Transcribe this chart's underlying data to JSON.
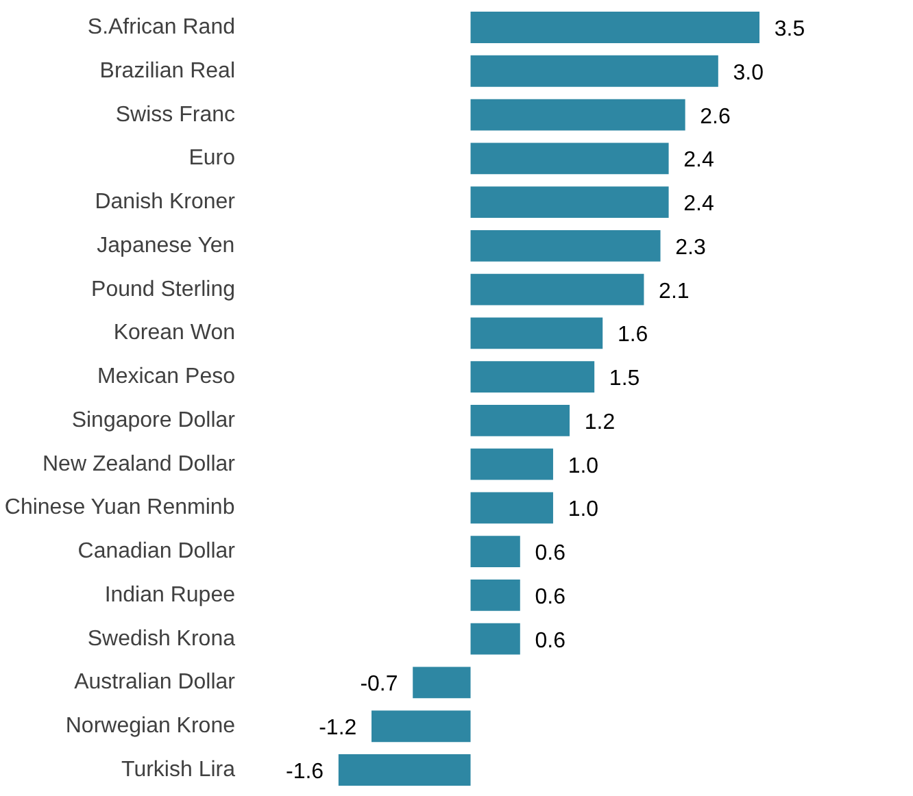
{
  "chart_data": {
    "type": "bar",
    "orientation": "horizontal",
    "color": "#2e87a3",
    "value_labels": [
      "3.5",
      "3.0",
      "2.6",
      "2.4",
      "2.4",
      "2.3",
      "2.1",
      "1.6",
      "1.5",
      "1.2",
      "1.0",
      "1.0",
      "0.6",
      "0.6",
      "0.6",
      "-0.7",
      "-1.2",
      "-1.6"
    ],
    "categories": [
      "S.African Rand",
      "Brazilian Real",
      "Swiss Franc",
      "Euro",
      "Danish Kroner",
      "Japanese Yen",
      "Pound Sterling",
      "Korean Won",
      "Mexican Peso",
      "Singapore Dollar",
      "New Zealand Dollar",
      "Chinese Yuan Renminb",
      "Canadian Dollar",
      "Indian Rupee",
      "Swedish Krona",
      "Australian Dollar",
      "Norwegian Krone",
      "Turkish Lira"
    ],
    "values": [
      3.5,
      3.0,
      2.6,
      2.4,
      2.4,
      2.3,
      2.1,
      1.6,
      1.5,
      1.2,
      1.0,
      1.0,
      0.6,
      0.6,
      0.6,
      -0.7,
      -1.2,
      -1.6
    ]
  }
}
